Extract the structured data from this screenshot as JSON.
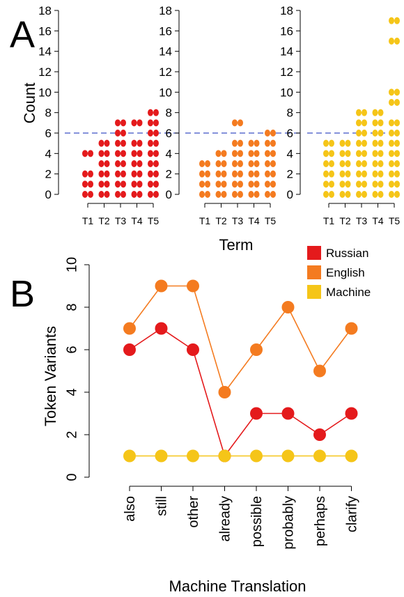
{
  "panel_labels": {
    "a": "A",
    "b": "B"
  },
  "colors": {
    "russian": "#e41a1c",
    "english": "#f47b20",
    "machine": "#f5c518",
    "threshold": "#3a4fc4"
  },
  "chart_data": [
    {
      "type": "scatter",
      "panel": "A",
      "ylabel": "Count",
      "xlabel": "Term",
      "ylim": [
        0,
        18
      ],
      "yticks": [
        0,
        2,
        4,
        6,
        8,
        10,
        12,
        14,
        16,
        18
      ],
      "threshold": 6,
      "categories": [
        "T1",
        "T2",
        "T3",
        "T4",
        "T5"
      ],
      "subplots": [
        {
          "color_key": "russian",
          "points": [
            [
              0,
              1,
              2,
              4
            ],
            [
              0,
              1,
              2,
              3,
              4,
              5
            ],
            [
              0,
              1,
              2,
              3,
              4,
              5,
              6,
              7
            ],
            [
              0,
              1,
              2,
              3,
              4,
              5,
              7
            ],
            [
              0,
              1,
              2,
              3,
              4,
              5,
              6,
              7,
              8
            ]
          ]
        },
        {
          "color_key": "english",
          "points": [
            [
              0,
              1,
              2,
              3
            ],
            [
              0,
              1,
              2,
              3,
              4
            ],
            [
              0,
              1,
              2,
              3,
              4,
              5,
              7
            ],
            [
              0,
              1,
              2,
              3,
              4,
              5
            ],
            [
              0,
              1,
              2,
              3,
              4,
              5,
              6
            ]
          ]
        },
        {
          "color_key": "machine",
          "points": [
            [
              0,
              1,
              2,
              3,
              4,
              5
            ],
            [
              0,
              1,
              2,
              3,
              4,
              5
            ],
            [
              0,
              1,
              2,
              3,
              4,
              5,
              6,
              7,
              8
            ],
            [
              0,
              1,
              2,
              3,
              4,
              5,
              6,
              7,
              8
            ],
            [
              0,
              1,
              2,
              3,
              4,
              5,
              6,
              7,
              9,
              10,
              15,
              17
            ]
          ]
        }
      ]
    },
    {
      "type": "line",
      "panel": "B",
      "ylabel": "Token Variants",
      "xlabel": "Machine Translation",
      "ylim": [
        0,
        10
      ],
      "yticks": [
        0,
        2,
        4,
        6,
        8,
        10
      ],
      "categories": [
        "also",
        "still",
        "other",
        "already",
        "possible",
        "probably",
        "perhaps",
        "clarify"
      ],
      "legend_position": "top-right",
      "series": [
        {
          "name": "English",
          "color_key": "english",
          "values": [
            7,
            9,
            9,
            4,
            6,
            8,
            5,
            7
          ]
        },
        {
          "name": "Russian",
          "color_key": "russian",
          "values": [
            6,
            7,
            6,
            1,
            3,
            3,
            2,
            3
          ]
        },
        {
          "name": "Machine",
          "color_key": "machine",
          "values": [
            1,
            1,
            1,
            1,
            1,
            1,
            1,
            1
          ]
        }
      ],
      "legend_order": [
        "Russian",
        "English",
        "Machine"
      ]
    }
  ]
}
